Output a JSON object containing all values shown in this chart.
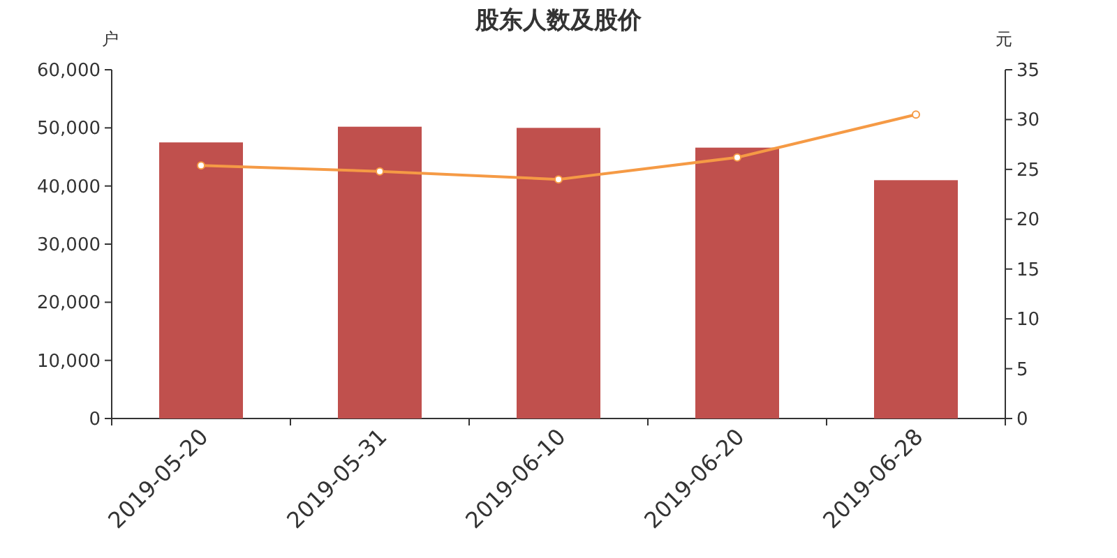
{
  "chart_data": {
    "type": "bar",
    "title": "股东人数及股价",
    "ylabel": "户",
    "y2label": "元",
    "categories": [
      "2019-05-20",
      "2019-05-31",
      "2019-06-10",
      "2019-06-20",
      "2019-06-28"
    ],
    "series": [
      {
        "color": "#c0504d",
        "values": [
          47500,
          50200,
          50000,
          46600,
          41000
        ]
      },
      {
        "type": "line",
        "axis": "y2",
        "color": "#f59a45",
        "marker": "circle",
        "values": [
          25.4,
          24.8,
          24.0,
          26.2,
          30.5
        ]
      }
    ],
    "ylim": [
      0,
      60000
    ],
    "yticks": [
      {
        "value": 0,
        "label": "0"
      },
      {
        "value": 10000,
        "label": "10,000"
      },
      {
        "value": 20000,
        "label": "20,000"
      },
      {
        "value": 30000,
        "label": "30,000"
      },
      {
        "value": 40000,
        "label": "40,000"
      },
      {
        "value": 50000,
        "label": "50,000"
      },
      {
        "value": 60000,
        "label": "60,000"
      }
    ],
    "y2lim": [
      0,
      35
    ],
    "y2ticks": [
      0,
      5,
      10,
      15,
      20,
      25,
      30,
      35
    ],
    "grid": false
  }
}
